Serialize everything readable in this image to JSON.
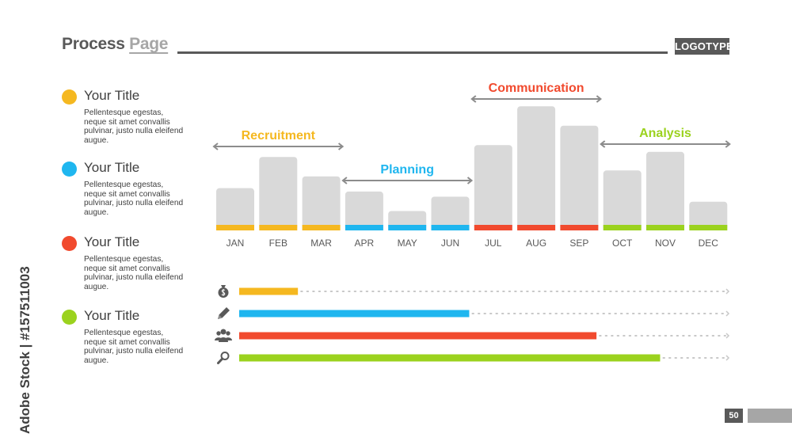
{
  "header": {
    "title_main": "Process",
    "title_accent": "Page",
    "logo": "LOGOTYPE"
  },
  "legend": [
    {
      "title": "Your Title",
      "desc": "Pellentesque egestas, neque sit amet convallis pulvinar, justo nulla eleifend augue.",
      "color": "#f5b820"
    },
    {
      "title": "Your Title",
      "desc": "Pellentesque egestas, neque sit amet convallis pulvinar, justo nulla eleifend augue.",
      "color": "#1fb6ef"
    },
    {
      "title": "Your Title",
      "desc": "Pellentesque egestas, neque sit amet convallis pulvinar, justo nulla eleifend augue.",
      "color": "#f14a2e"
    },
    {
      "title": "Your Title",
      "desc": "Pellentesque egestas, neque sit amet convallis pulvinar, justo nulla eleifend augue.",
      "color": "#9bd21e"
    }
  ],
  "chart_data": [
    {
      "type": "bar",
      "categories": [
        "JAN",
        "FEB",
        "MAR",
        "APR",
        "MAY",
        "JUN",
        "JUL",
        "AUG",
        "SEP",
        "OCT",
        "NOV",
        "DEC"
      ],
      "values": [
        50,
        87,
        64,
        46,
        23,
        40,
        101,
        147,
        124,
        71,
        93,
        34
      ],
      "ylim": [
        0,
        150
      ],
      "bar_color": "#d9d9d9",
      "phases": [
        {
          "name": "Recruitment",
          "start": 0,
          "end": 2,
          "color": "#f5b820"
        },
        {
          "name": "Planning",
          "start": 3,
          "end": 5,
          "color": "#1fb6ef"
        },
        {
          "name": "Communication",
          "start": 6,
          "end": 8,
          "color": "#f14a2e"
        },
        {
          "name": "Analysis",
          "start": 9,
          "end": 11,
          "color": "#9bd21e"
        }
      ]
    },
    {
      "type": "bar",
      "orientation": "horizontal",
      "categories": [
        "money-bag-icon",
        "pencil-icon",
        "people-icon",
        "magnifier-icon"
      ],
      "values": [
        12,
        47,
        73,
        86
      ],
      "ylim": [
        0,
        100
      ],
      "colors": [
        "#f5b820",
        "#1fb6ef",
        "#f14a2e",
        "#9bd21e"
      ]
    }
  ],
  "footer": {
    "page_number": "50",
    "stock_text": "Adobe Stock | #157511003"
  }
}
